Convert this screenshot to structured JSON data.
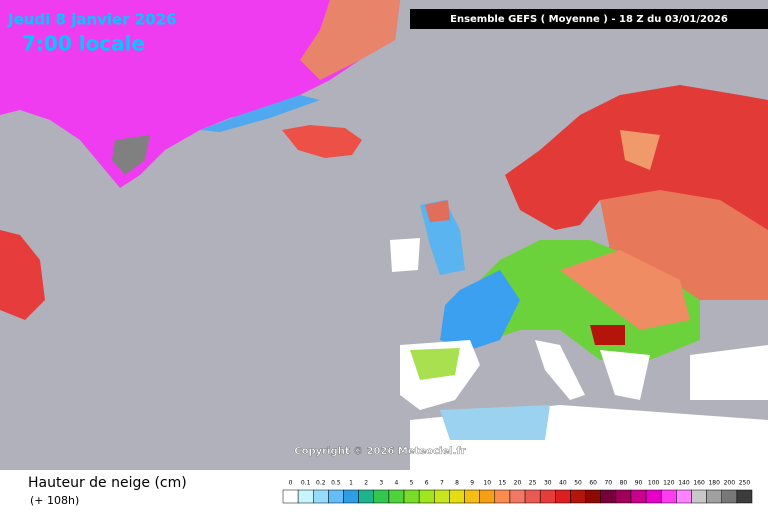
{
  "header": {
    "date": "Jeudi 8 janvier 2026",
    "time": "7:00 locale",
    "run": "Ensemble GEFS  ( Moyenne )  -  18 Z du 03/01/2026"
  },
  "copyright": "Copyright © 2026 Meteociel.fr",
  "footer": {
    "title": "Hauteur de neige (cm)",
    "lead": "(+ 108h)"
  },
  "legend": {
    "labels": [
      "0",
      "0.1",
      "0.2",
      "0.5",
      "1",
      "2",
      "3",
      "4",
      "5",
      "6",
      "7",
      "8",
      "9",
      "10",
      "15",
      "20",
      "25",
      "30",
      "40",
      "50",
      "60",
      "70",
      "80",
      "90",
      "100",
      "120",
      "140",
      "160",
      "180",
      "200",
      "250"
    ],
    "colors": [
      "#ffffff",
      "#c8f4ff",
      "#96dcfa",
      "#64bef5",
      "#2d9ee6",
      "#1eb48c",
      "#32c850",
      "#50d23c",
      "#78dc28",
      "#a0e61e",
      "#c8e61e",
      "#e6dc14",
      "#f5be14",
      "#f5a014",
      "#fa8c50",
      "#f07864",
      "#eb5a50",
      "#e63c3c",
      "#dc1e1e",
      "#b4140a",
      "#8c0a00",
      "#78003c",
      "#a0005a",
      "#c8008c",
      "#e600c8",
      "#ff3cf0",
      "#ff82ff",
      "#c8c8c8",
      "#a0a0a0",
      "#787878",
      "#3c3c3c"
    ]
  }
}
